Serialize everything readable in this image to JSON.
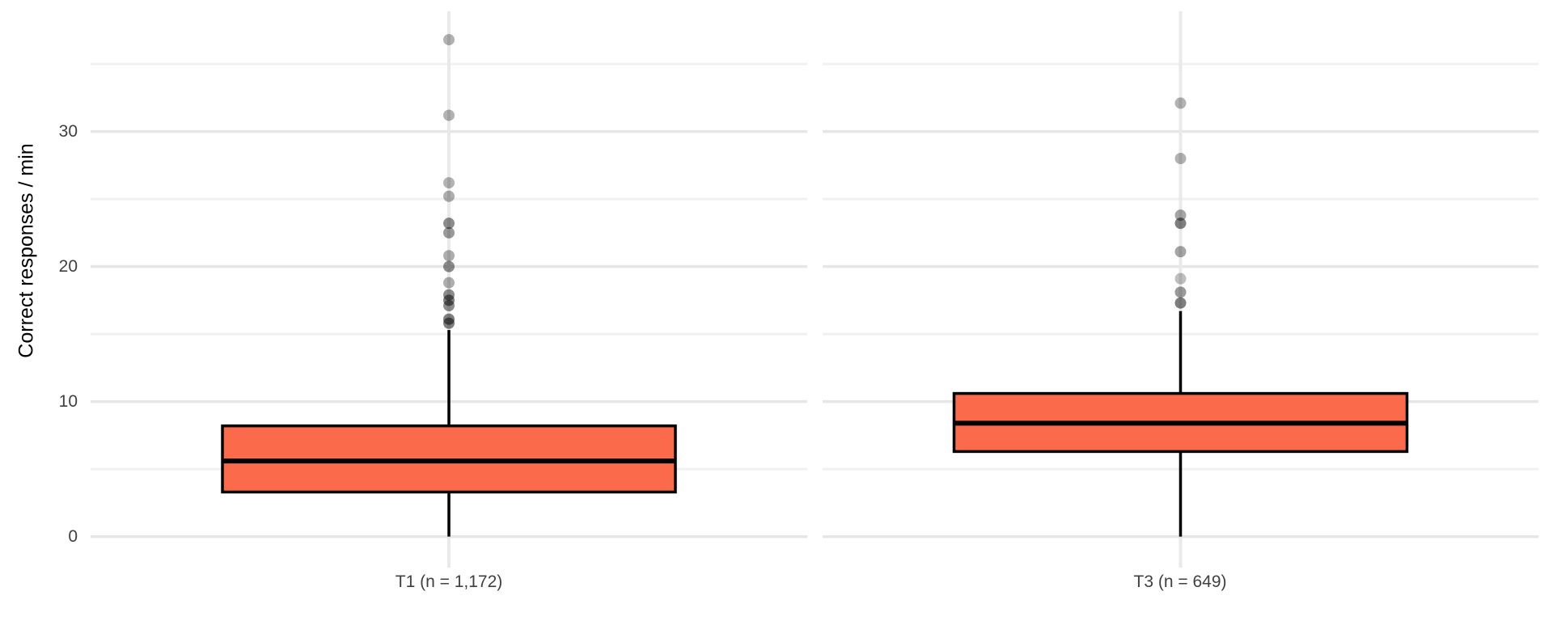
{
  "chart_data": {
    "type": "boxplot",
    "title": "",
    "ylabel": "Correct responses / min",
    "xlabel": "",
    "ylim": [
      -2.0,
      38.9
    ],
    "yticks_major": [
      0,
      10,
      20,
      30
    ],
    "yticks_minor": [
      5,
      15,
      25,
      35
    ],
    "grid": true,
    "legend": "none",
    "groups": [
      {
        "label": "T1 (n = 1,172)",
        "n": 1172,
        "q1": 3.3,
        "median": 5.6,
        "q3": 8.2,
        "whisker_low": 0,
        "whisker_high": 15.3,
        "outliers": [
          {
            "v": 36.8,
            "a": 0.3
          },
          {
            "v": 31.2,
            "a": 0.3
          },
          {
            "v": 26.2,
            "a": 0.3
          },
          {
            "v": 25.2,
            "a": 0.32
          },
          {
            "v": 23.2,
            "a": 0.45
          },
          {
            "v": 22.5,
            "a": 0.4
          },
          {
            "v": 20.8,
            "a": 0.32
          },
          {
            "v": 20.0,
            "a": 0.45
          },
          {
            "v": 18.8,
            "a": 0.32
          },
          {
            "v": 17.9,
            "a": 0.45
          },
          {
            "v": 17.5,
            "a": 0.5
          },
          {
            "v": 17.1,
            "a": 0.45
          },
          {
            "v": 16.1,
            "a": 0.5
          },
          {
            "v": 15.8,
            "a": 0.5
          }
        ]
      },
      {
        "label": "T3 (n = 649)",
        "n": 649,
        "q1": 6.3,
        "median": 8.4,
        "q3": 10.6,
        "whisker_low": 0,
        "whisker_high": 16.7,
        "outliers": [
          {
            "v": 32.1,
            "a": 0.3
          },
          {
            "v": 28.0,
            "a": 0.3
          },
          {
            "v": 23.8,
            "a": 0.35
          },
          {
            "v": 23.2,
            "a": 0.5
          },
          {
            "v": 21.1,
            "a": 0.35
          },
          {
            "v": 19.1,
            "a": 0.25
          },
          {
            "v": 18.1,
            "a": 0.4
          },
          {
            "v": 17.3,
            "a": 0.5
          }
        ]
      }
    ],
    "colors": {
      "box_fill": "#FB6A4A",
      "box_stroke": "#000000",
      "median": "#000000",
      "whisker": "#000000",
      "outlier": "#000000",
      "grid_major": "#E6E6E6",
      "grid_minor": "#F1F1F1",
      "grid_vertical": "#E9E9E9",
      "axis_text": "#404040",
      "axis_title": "#000000"
    }
  }
}
